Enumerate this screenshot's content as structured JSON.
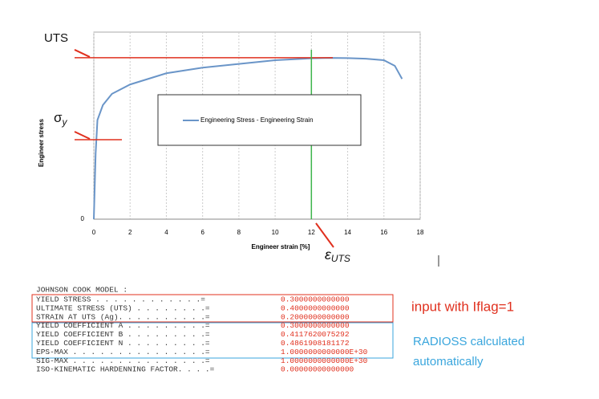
{
  "chart_data": {
    "type": "line",
    "xlabel": "Engineer strain [%]",
    "ylabel": "Engineer stress",
    "x": [
      0,
      0.1,
      0.2,
      0.5,
      1,
      2,
      3,
      4,
      6,
      8,
      10,
      12,
      13,
      14,
      15,
      16,
      16.6,
      17
    ],
    "series": [
      {
        "name": "Engineering Stress - Engineering Strain",
        "color": "#6a95c8",
        "values": [
          0,
          35,
          53,
          61,
          67,
          72,
          75,
          78,
          81,
          83,
          85,
          86,
          86.2,
          86.1,
          85.8,
          85,
          82,
          75
        ]
      }
    ],
    "xlim": [
      0,
      18
    ],
    "xticks": [
      0,
      2,
      4,
      6,
      8,
      10,
      12,
      14,
      16,
      18
    ],
    "ylim": [
      0,
      100
    ],
    "yticks": [
      0
    ],
    "grid": true,
    "reference_lines": [
      {
        "axis": "y",
        "value": 86.3,
        "color": "#e0301e",
        "symbol": "UTS"
      },
      {
        "axis": "y",
        "value": 42.5,
        "color": "#e0301e",
        "symbol": "σ",
        "subscript": "y"
      },
      {
        "axis": "x",
        "value": 12,
        "color": "#3cb44b",
        "symbol": "ε",
        "subscript": "UTS"
      }
    ]
  },
  "listing": {
    "title": "JOHNSON COOK MODEL :",
    "rows": [
      [
        "YIELD STRESS  . . . . . . . . . . . .=",
        "0.3000000000000"
      ],
      [
        "ULTIMATE STRESS (UTS) . . . . . . . .=",
        "0.4000000000000"
      ],
      [
        "STRAIN AT UTS (Ag). . . . . . . . . .=",
        "0.2000000000000"
      ],
      [
        "YIELD COEFFICIENT A . . . . . . . . .=",
        "0.3000000000000"
      ],
      [
        "YIELD COEFFICIENT B . . . . . . . . .=",
        "0.4117620075292"
      ],
      [
        "YIELD COEFFICIENT N . . . . . . . . .=",
        "0.4861908181172"
      ],
      [
        "EPS-MAX . . . . . . . . . . . . . . .=",
        "1.0000000000000E+30"
      ],
      [
        "SIG-MAX . . . . . . . . . . . . . . .=",
        "1.0000000000000E+30"
      ],
      [
        "ISO-KINEMATIC HARDENNING FACTOR. . . .=",
        " 0.00000000000000"
      ]
    ],
    "notes": [
      "input with Iflag=1",
      "RADIOSS calculated",
      "automatically"
    ]
  }
}
